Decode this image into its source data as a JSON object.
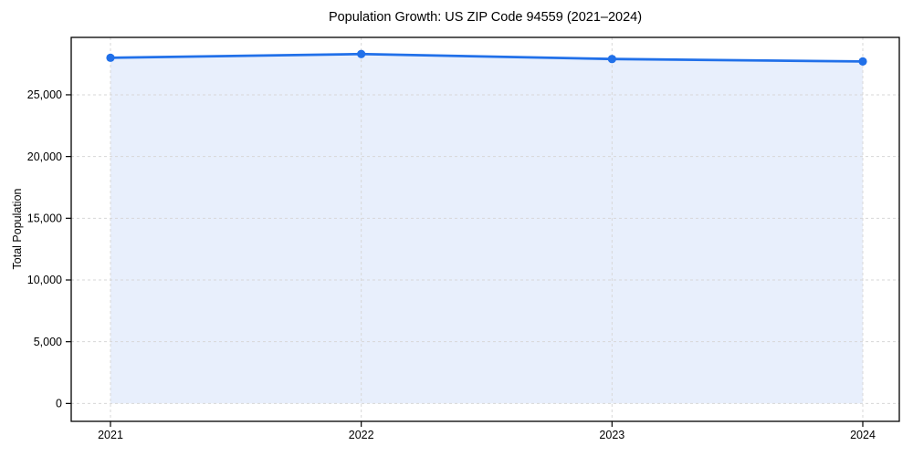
{
  "figure": {
    "background": "#ffffff"
  },
  "chart_data": {
    "type": "area",
    "title": "Population Growth: US ZIP Code 94559 (2021–2024)",
    "xlabel": "",
    "ylabel": "Total Population",
    "categories": [
      "2021",
      "2022",
      "2023",
      "2024"
    ],
    "values": [
      28000,
      28300,
      27900,
      27700
    ],
    "series": [
      {
        "name": "Total Population",
        "values": [
          28000,
          28300,
          27900,
          27700
        ]
      }
    ],
    "ylim": [
      -1450,
      29650
    ],
    "yticks": [
      0,
      5000,
      10000,
      15000,
      20000,
      25000
    ],
    "ytick_labels": [
      "0",
      "5,000",
      "10,000",
      "15,000",
      "20,000",
      "25,000"
    ],
    "grid": true,
    "grid_style": "dashed",
    "legend": false,
    "marker": "circle",
    "colors": {
      "line": "#2170e9",
      "marker": "#2170e9",
      "fill": "#e8effc",
      "grid": "#d7d7d7",
      "spine": "#000000",
      "text": "#000000"
    }
  }
}
